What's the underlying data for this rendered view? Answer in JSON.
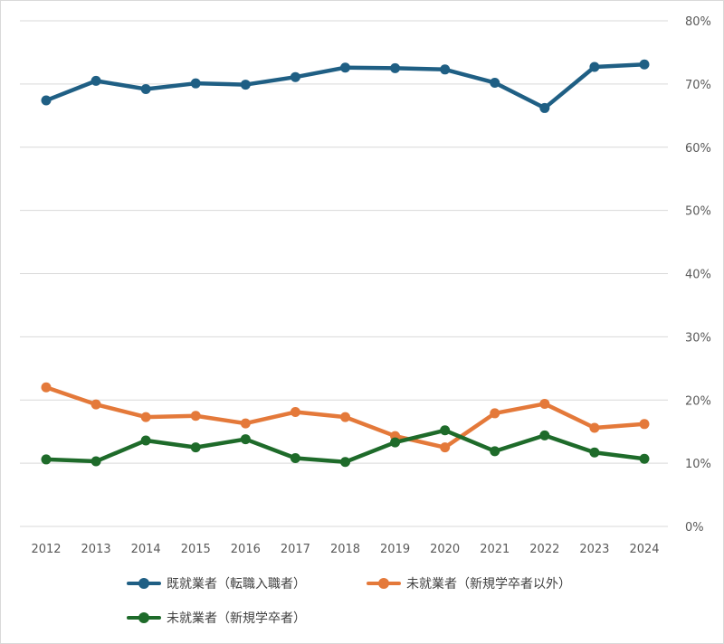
{
  "chart_data": {
    "type": "line",
    "categories": [
      "2012",
      "2013",
      "2014",
      "2015",
      "2016",
      "2017",
      "2018",
      "2019",
      "2020",
      "2021",
      "2022",
      "2023",
      "2024"
    ],
    "y_axis": {
      "position": "right",
      "min": 0,
      "max": 80,
      "ticks": [
        0,
        10,
        20,
        30,
        40,
        50,
        60,
        70,
        80
      ],
      "tick_labels": [
        "0%",
        "10%",
        "20%",
        "30%",
        "40%",
        "50%",
        "60%",
        "70%",
        "80%"
      ]
    },
    "grid": true,
    "legend_position": "bottom",
    "series": [
      {
        "name": "既就業者（転職入職者）",
        "color": "#1f5f84",
        "values": [
          67.4,
          70.5,
          69.2,
          70.1,
          69.9,
          71.1,
          72.6,
          72.5,
          72.3,
          70.2,
          66.2,
          72.7,
          73.1
        ]
      },
      {
        "name": "未就業者（新規学卒者以外）",
        "color": "#e4793a",
        "values": [
          22.0,
          19.3,
          17.3,
          17.5,
          16.3,
          18.1,
          17.3,
          14.3,
          12.5,
          17.9,
          19.4,
          15.6,
          16.2
        ]
      },
      {
        "name": "未就業者（新規学卒者）",
        "color": "#1e6b2a",
        "values": [
          10.6,
          10.3,
          13.6,
          12.5,
          13.8,
          10.8,
          10.2,
          13.3,
          15.2,
          11.9,
          14.4,
          11.7,
          10.7
        ]
      }
    ]
  }
}
